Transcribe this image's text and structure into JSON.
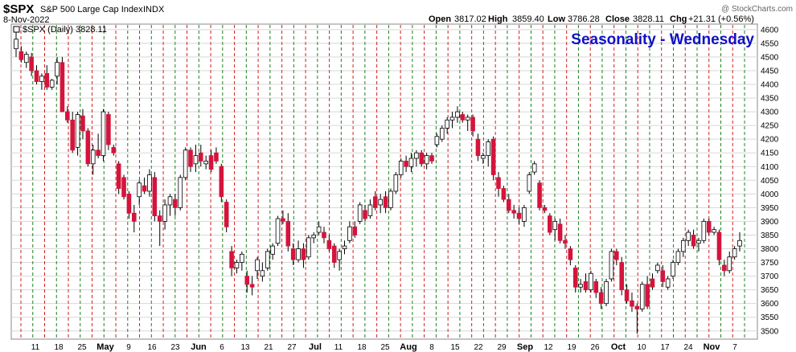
{
  "header": {
    "symbol": "$SPX",
    "name": "S&P 500 Large Cap Index",
    "exchange": "INDX",
    "date": "8-Nov-2022",
    "credit": "@ StockCharts.com",
    "legend": "$SPX (Daily) 3828.11",
    "ohlc": {
      "open_label": "Open",
      "open": "3817.02",
      "high_label": "High",
      "high": "3859.40",
      "low_label": "Low",
      "low": "3786.28",
      "close_label": "Close",
      "close": "3828.11",
      "chg_label": "Chg",
      "chg": "+21.31 (+0.56%)"
    }
  },
  "colors": {
    "up_fill": "#ffffff",
    "up_stroke": "#000000",
    "down_fill": "#d4143c",
    "wednesday_line": "#d02020",
    "other_line": "#208020",
    "title": "#1010c8",
    "grid": "#d8d8d8"
  },
  "chart_data": {
    "type": "candlestick",
    "title": "Seasonality - Wednesday",
    "ylim": [
      3470,
      4620
    ],
    "y_ticks": [
      3500,
      3550,
      3600,
      3650,
      3700,
      3750,
      3800,
      3850,
      3900,
      3950,
      4000,
      4050,
      4100,
      4150,
      4200,
      4250,
      4300,
      4350,
      4400,
      4450,
      4500,
      4550,
      4600
    ],
    "x_labels": [
      "11",
      "18",
      "25",
      "May",
      "9",
      "16",
      "23",
      "Jun",
      "6",
      "13",
      "21",
      "27",
      "Jul",
      "11",
      "18",
      "25",
      "Aug",
      "8",
      "15",
      "22",
      "29",
      "Sep",
      "12",
      "19",
      "26",
      "Oct",
      "10",
      "17",
      "24",
      "Nov",
      "7"
    ],
    "month_labels": [
      "May",
      "Jun",
      "Jul",
      "Aug",
      "Sep",
      "Oct",
      "Nov"
    ],
    "vertical_lines": {
      "wednesday_color": "red",
      "other_color": "green",
      "pattern": "alternating weekly markers"
    },
    "series": [
      {
        "values": [
          {
            "o": 4530,
            "h": 4590,
            "l": 4500,
            "c": 4565
          },
          {
            "o": 4520,
            "h": 4540,
            "l": 4480,
            "c": 4490
          },
          {
            "o": 4480,
            "h": 4520,
            "l": 4460,
            "c": 4510
          },
          {
            "o": 4500,
            "h": 4515,
            "l": 4430,
            "c": 4450
          },
          {
            "o": 4450,
            "h": 4470,
            "l": 4400,
            "c": 4410
          },
          {
            "o": 4410,
            "h": 4440,
            "l": 4380,
            "c": 4430
          },
          {
            "o": 4440,
            "h": 4470,
            "l": 4380,
            "c": 4390
          },
          {
            "o": 4390,
            "h": 4420,
            "l": 4380,
            "c": 4415
          },
          {
            "o": 4430,
            "h": 4500,
            "l": 4400,
            "c": 4480
          },
          {
            "o": 4480,
            "h": 4500,
            "l": 4350,
            "c": 4300
          },
          {
            "o": 4300,
            "h": 4320,
            "l": 4260,
            "c": 4270
          },
          {
            "o": 4270,
            "h": 4300,
            "l": 4150,
            "c": 4160
          },
          {
            "o": 4170,
            "h": 4300,
            "l": 4140,
            "c": 4290
          },
          {
            "o": 4285,
            "h": 4310,
            "l": 4200,
            "c": 4230
          },
          {
            "o": 4230,
            "h": 4240,
            "l": 4100,
            "c": 4110
          },
          {
            "o": 4110,
            "h": 4180,
            "l": 4070,
            "c": 4160
          },
          {
            "o": 4160,
            "h": 4220,
            "l": 4130,
            "c": 4140
          },
          {
            "o": 4140,
            "h": 4310,
            "l": 4120,
            "c": 4300
          },
          {
            "o": 4290,
            "h": 4300,
            "l": 4160,
            "c": 4180
          },
          {
            "o": 4170,
            "h": 4180,
            "l": 4140,
            "c": 4150
          },
          {
            "o": 4110,
            "h": 4120,
            "l": 4000,
            "c": 4020
          },
          {
            "o": 4060,
            "h": 4070,
            "l": 3980,
            "c": 3990
          },
          {
            "o": 4000,
            "h": 4010,
            "l": 3910,
            "c": 3930
          },
          {
            "o": 3930,
            "h": 3960,
            "l": 3860,
            "c": 3900
          },
          {
            "o": 3990,
            "h": 4050,
            "l": 3960,
            "c": 4040
          },
          {
            "o": 4030,
            "h": 4060,
            "l": 4000,
            "c": 4010
          },
          {
            "o": 4010,
            "h": 4090,
            "l": 3990,
            "c": 4070
          },
          {
            "o": 4060,
            "h": 4080,
            "l": 3900,
            "c": 3920
          },
          {
            "o": 3920,
            "h": 3940,
            "l": 3810,
            "c": 3900
          },
          {
            "o": 3900,
            "h": 3980,
            "l": 3870,
            "c": 3960
          },
          {
            "o": 3960,
            "h": 4000,
            "l": 3920,
            "c": 3990
          },
          {
            "o": 3980,
            "h": 4000,
            "l": 3920,
            "c": 3950
          },
          {
            "o": 3950,
            "h": 4070,
            "l": 3940,
            "c": 4060
          },
          {
            "o": 4060,
            "h": 4170,
            "l": 4050,
            "c": 4160
          },
          {
            "o": 4160,
            "h": 4170,
            "l": 4080,
            "c": 4100
          },
          {
            "o": 4110,
            "h": 4180,
            "l": 4080,
            "c": 4140
          },
          {
            "o": 4150,
            "h": 4180,
            "l": 4100,
            "c": 4120
          },
          {
            "o": 4110,
            "h": 4140,
            "l": 4090,
            "c": 4120
          },
          {
            "o": 4140,
            "h": 4160,
            "l": 4080,
            "c": 4090
          },
          {
            "o": 4150,
            "h": 4170,
            "l": 4110,
            "c": 4120
          },
          {
            "o": 4100,
            "h": 4110,
            "l": 3970,
            "c": 3990
          },
          {
            "o": 3970,
            "h": 3980,
            "l": 3860,
            "c": 3880
          },
          {
            "o": 3790,
            "h": 3810,
            "l": 3700,
            "c": 3730
          },
          {
            "o": 3730,
            "h": 3760,
            "l": 3710,
            "c": 3750
          },
          {
            "o": 3750,
            "h": 3790,
            "l": 3720,
            "c": 3780
          },
          {
            "o": 3700,
            "h": 3720,
            "l": 3640,
            "c": 3670
          },
          {
            "o": 3670,
            "h": 3700,
            "l": 3630,
            "c": 3660
          },
          {
            "o": 3720,
            "h": 3770,
            "l": 3690,
            "c": 3760
          },
          {
            "o": 3700,
            "h": 3750,
            "l": 3680,
            "c": 3720
          },
          {
            "o": 3730,
            "h": 3800,
            "l": 3720,
            "c": 3790
          },
          {
            "o": 3780,
            "h": 3820,
            "l": 3760,
            "c": 3810
          },
          {
            "o": 3820,
            "h": 3920,
            "l": 3810,
            "c": 3910
          },
          {
            "o": 3910,
            "h": 3940,
            "l": 3890,
            "c": 3900
          },
          {
            "o": 3900,
            "h": 3930,
            "l": 3790,
            "c": 3810
          },
          {
            "o": 3800,
            "h": 3820,
            "l": 3740,
            "c": 3760
          },
          {
            "o": 3760,
            "h": 3830,
            "l": 3750,
            "c": 3800
          },
          {
            "o": 3800,
            "h": 3820,
            "l": 3730,
            "c": 3760
          },
          {
            "o": 3770,
            "h": 3850,
            "l": 3760,
            "c": 3840
          },
          {
            "o": 3840,
            "h": 3860,
            "l": 3820,
            "c": 3850
          },
          {
            "o": 3860,
            "h": 3900,
            "l": 3850,
            "c": 3880
          },
          {
            "o": 3860,
            "h": 3880,
            "l": 3820,
            "c": 3840
          },
          {
            "o": 3830,
            "h": 3850,
            "l": 3790,
            "c": 3800
          },
          {
            "o": 3810,
            "h": 3820,
            "l": 3730,
            "c": 3750
          },
          {
            "o": 3760,
            "h": 3800,
            "l": 3720,
            "c": 3790
          },
          {
            "o": 3800,
            "h": 3830,
            "l": 3780,
            "c": 3810
          },
          {
            "o": 3830,
            "h": 3900,
            "l": 3820,
            "c": 3880
          },
          {
            "o": 3880,
            "h": 3900,
            "l": 3840,
            "c": 3850
          },
          {
            "o": 3900,
            "h": 3970,
            "l": 3890,
            "c": 3960
          },
          {
            "o": 3940,
            "h": 3960,
            "l": 3900,
            "c": 3910
          },
          {
            "o": 3920,
            "h": 3980,
            "l": 3910,
            "c": 3960
          },
          {
            "o": 3990,
            "h": 4010,
            "l": 3940,
            "c": 3950
          },
          {
            "o": 3960,
            "h": 4000,
            "l": 3930,
            "c": 3980
          },
          {
            "o": 3990,
            "h": 4010,
            "l": 3930,
            "c": 3950
          },
          {
            "o": 3950,
            "h": 4020,
            "l": 3940,
            "c": 4010
          },
          {
            "o": 4010,
            "h": 4080,
            "l": 4000,
            "c": 4070
          },
          {
            "o": 4070,
            "h": 4130,
            "l": 4060,
            "c": 4120
          },
          {
            "o": 4120,
            "h": 4140,
            "l": 4080,
            "c": 4100
          },
          {
            "o": 4100,
            "h": 4150,
            "l": 4080,
            "c": 4130
          },
          {
            "o": 4130,
            "h": 4160,
            "l": 4100,
            "c": 4150
          },
          {
            "o": 4150,
            "h": 4160,
            "l": 4100,
            "c": 4110
          },
          {
            "o": 4110,
            "h": 4150,
            "l": 4090,
            "c": 4140
          },
          {
            "o": 4140,
            "h": 4150,
            "l": 4110,
            "c": 4120
          },
          {
            "o": 4180,
            "h": 4220,
            "l": 4170,
            "c": 4210
          },
          {
            "o": 4200,
            "h": 4250,
            "l": 4190,
            "c": 4240
          },
          {
            "o": 4240,
            "h": 4280,
            "l": 4220,
            "c": 4270
          },
          {
            "o": 4270,
            "h": 4300,
            "l": 4240,
            "c": 4280
          },
          {
            "o": 4280,
            "h": 4320,
            "l": 4260,
            "c": 4300
          },
          {
            "o": 4290,
            "h": 4300,
            "l": 4260,
            "c": 4270
          },
          {
            "o": 4270,
            "h": 4290,
            "l": 4230,
            "c": 4280
          },
          {
            "o": 4280,
            "h": 4290,
            "l": 4210,
            "c": 4230
          },
          {
            "o": 4200,
            "h": 4220,
            "l": 4120,
            "c": 4140
          },
          {
            "o": 4130,
            "h": 4150,
            "l": 4110,
            "c": 4140
          },
          {
            "o": 4140,
            "h": 4200,
            "l": 4100,
            "c": 4190
          },
          {
            "o": 4200,
            "h": 4210,
            "l": 4050,
            "c": 4070
          },
          {
            "o": 4060,
            "h": 4080,
            "l": 3990,
            "c": 4020
          },
          {
            "o": 4020,
            "h": 4030,
            "l": 3970,
            "c": 3980
          },
          {
            "o": 3980,
            "h": 4000,
            "l": 3930,
            "c": 3940
          },
          {
            "o": 3940,
            "h": 3960,
            "l": 3910,
            "c": 3930
          },
          {
            "o": 3930,
            "h": 3950,
            "l": 3890,
            "c": 3910
          },
          {
            "o": 3900,
            "h": 3960,
            "l": 3880,
            "c": 3950
          },
          {
            "o": 4010,
            "h": 4080,
            "l": 4000,
            "c": 4070
          },
          {
            "o": 4080,
            "h": 4120,
            "l": 4070,
            "c": 4110
          },
          {
            "o": 4040,
            "h": 4050,
            "l": 3940,
            "c": 3950
          },
          {
            "o": 3950,
            "h": 3960,
            "l": 3930,
            "c": 3940
          },
          {
            "o": 3920,
            "h": 3930,
            "l": 3850,
            "c": 3860
          },
          {
            "o": 3870,
            "h": 3910,
            "l": 3830,
            "c": 3900
          },
          {
            "o": 3890,
            "h": 3910,
            "l": 3820,
            "c": 3830
          },
          {
            "o": 3830,
            "h": 3850,
            "l": 3800,
            "c": 3820
          },
          {
            "o": 3800,
            "h": 3810,
            "l": 3740,
            "c": 3760
          },
          {
            "o": 3730,
            "h": 3740,
            "l": 3640,
            "c": 3660
          },
          {
            "o": 3660,
            "h": 3690,
            "l": 3640,
            "c": 3670
          },
          {
            "o": 3680,
            "h": 3710,
            "l": 3640,
            "c": 3650
          },
          {
            "o": 3650,
            "h": 3720,
            "l": 3640,
            "c": 3710
          },
          {
            "o": 3680,
            "h": 3690,
            "l": 3620,
            "c": 3640
          },
          {
            "o": 3640,
            "h": 3660,
            "l": 3580,
            "c": 3600
          },
          {
            "o": 3600,
            "h": 3690,
            "l": 3590,
            "c": 3680
          },
          {
            "o": 3690,
            "h": 3800,
            "l": 3680,
            "c": 3790
          },
          {
            "o": 3790,
            "h": 3800,
            "l": 3740,
            "c": 3760
          },
          {
            "o": 3750,
            "h": 3770,
            "l": 3630,
            "c": 3650
          },
          {
            "o": 3650,
            "h": 3670,
            "l": 3600,
            "c": 3610
          },
          {
            "o": 3610,
            "h": 3640,
            "l": 3570,
            "c": 3590
          },
          {
            "o": 3590,
            "h": 3600,
            "l": 3490,
            "c": 3580
          },
          {
            "o": 3580,
            "h": 3680,
            "l": 3570,
            "c": 3670
          },
          {
            "o": 3670,
            "h": 3700,
            "l": 3580,
            "c": 3590
          },
          {
            "o": 3690,
            "h": 3710,
            "l": 3650,
            "c": 3660
          },
          {
            "o": 3720,
            "h": 3750,
            "l": 3710,
            "c": 3740
          },
          {
            "o": 3720,
            "h": 3740,
            "l": 3660,
            "c": 3680
          },
          {
            "o": 3660,
            "h": 3700,
            "l": 3650,
            "c": 3690
          },
          {
            "o": 3700,
            "h": 3760,
            "l": 3690,
            "c": 3750
          },
          {
            "o": 3750,
            "h": 3800,
            "l": 3740,
            "c": 3790
          },
          {
            "o": 3790,
            "h": 3840,
            "l": 3770,
            "c": 3830
          },
          {
            "o": 3830,
            "h": 3870,
            "l": 3810,
            "c": 3860
          },
          {
            "o": 3850,
            "h": 3870,
            "l": 3800,
            "c": 3810
          },
          {
            "o": 3820,
            "h": 3840,
            "l": 3790,
            "c": 3830
          },
          {
            "o": 3830,
            "h": 3910,
            "l": 3820,
            "c": 3900
          },
          {
            "o": 3900,
            "h": 3910,
            "l": 3850,
            "c": 3860
          },
          {
            "o": 3860,
            "h": 3880,
            "l": 3850,
            "c": 3870
          },
          {
            "o": 3860,
            "h": 3870,
            "l": 3740,
            "c": 3760
          },
          {
            "o": 3740,
            "h": 3760,
            "l": 3700,
            "c": 3720
          },
          {
            "o": 3720,
            "h": 3790,
            "l": 3710,
            "c": 3770
          },
          {
            "o": 3770,
            "h": 3810,
            "l": 3760,
            "c": 3800
          },
          {
            "o": 3810,
            "h": 3860,
            "l": 3790,
            "c": 3830
          }
        ]
      }
    ]
  }
}
